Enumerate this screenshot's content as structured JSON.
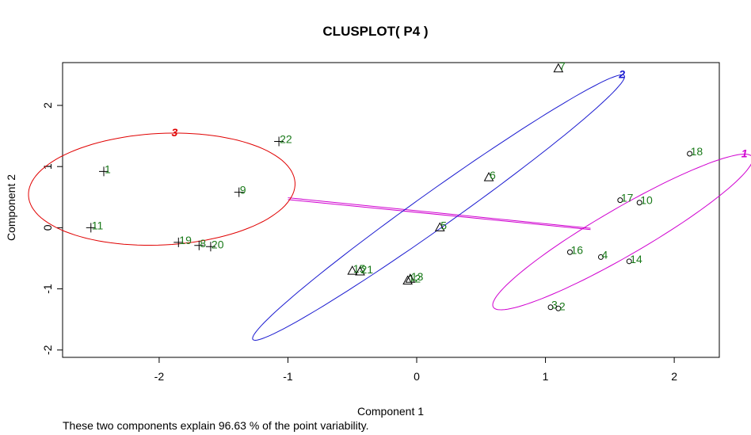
{
  "chart_data": {
    "type": "scatter",
    "title": "CLUSPLOT( P4 )",
    "xlabel": "Component 1",
    "ylabel": "Component 2",
    "caption": "These two components explain 96.63 % of the point variability.",
    "xlim": [
      -2.75,
      2.35
    ],
    "ylim": [
      -2.12,
      2.7
    ],
    "xticks": [
      -2,
      -1,
      0,
      1,
      2
    ],
    "yticks": [
      -2,
      -1,
      0,
      1,
      2
    ],
    "grid": false,
    "label_color": "#1a7a1a",
    "clusters": [
      {
        "label": "3",
        "color": "#e00000",
        "symbol": "plus",
        "ellipse": {
          "cx": -1.98,
          "cy": 0.63,
          "rx": 1.05,
          "ry": 0.9,
          "angle_deg": 19
        },
        "points": [
          {
            "id": "1",
            "x": -2.43,
            "y": 0.92
          },
          {
            "id": "11",
            "x": -2.53,
            "y": 0.0
          },
          {
            "id": "19",
            "x": -1.85,
            "y": -0.24
          },
          {
            "id": "8",
            "x": -1.69,
            "y": -0.29
          },
          {
            "id": "20",
            "x": -1.6,
            "y": -0.31
          },
          {
            "id": "9",
            "x": -1.38,
            "y": 0.58
          },
          {
            "id": "22",
            "x": -1.07,
            "y": 1.41
          }
        ]
      },
      {
        "label": "2",
        "color": "#1a1ad0",
        "symbol": "triangle",
        "ellipse": {
          "cx": 0.17,
          "cy": 0.33,
          "rx": 2.6,
          "ry": 0.2,
          "angle_deg": 56.5
        },
        "points": [
          {
            "id": "7",
            "x": 1.1,
            "y": 2.6
          },
          {
            "id": "6",
            "x": 0.56,
            "y": 0.82
          },
          {
            "id": "5",
            "x": 0.18,
            "y": 0.0
          },
          {
            "id": "15",
            "x": -0.5,
            "y": -0.71
          },
          {
            "id": "21",
            "x": -0.44,
            "y": -0.72
          },
          {
            "id": "12",
            "x": -0.07,
            "y": -0.87
          },
          {
            "id": "13",
            "x": -0.05,
            "y": -0.84
          }
        ]
      },
      {
        "label": "1",
        "color": "#d000d0",
        "symbol": "circle",
        "ellipse": {
          "cx": 1.6,
          "cy": -0.07,
          "rx": 1.6,
          "ry": 0.28,
          "angle_deg": 52
        },
        "points": [
          {
            "id": "18",
            "x": 2.12,
            "y": 1.21
          },
          {
            "id": "17",
            "x": 1.58,
            "y": 0.45
          },
          {
            "id": "10",
            "x": 1.73,
            "y": 0.41
          },
          {
            "id": "16",
            "x": 1.19,
            "y": -0.4
          },
          {
            "id": "4",
            "x": 1.43,
            "y": -0.48
          },
          {
            "id": "14",
            "x": 1.65,
            "y": -0.55
          },
          {
            "id": "3",
            "x": 1.04,
            "y": -1.3
          },
          {
            "id": "2",
            "x": 1.1,
            "y": -1.32
          }
        ]
      }
    ],
    "connector": {
      "color": "#d000d0",
      "lines": [
        {
          "x1": -1.0,
          "y1": 0.49,
          "x2": 1.35,
          "y2": -0.01
        },
        {
          "x1": -1.0,
          "y1": 0.46,
          "x2": 1.35,
          "y2": -0.03
        }
      ]
    }
  }
}
